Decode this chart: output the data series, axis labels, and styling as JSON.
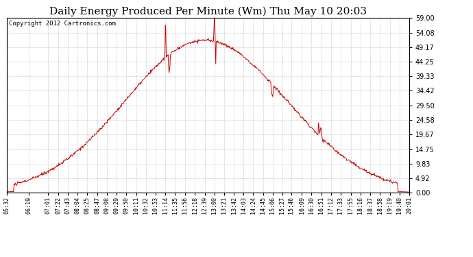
{
  "title": "Daily Energy Produced Per Minute (Wm) Thu May 10 20:03",
  "copyright": "Copyright 2012 Cartronics.com",
  "y_ticks": [
    0.0,
    4.92,
    9.83,
    14.75,
    19.67,
    24.58,
    29.5,
    34.42,
    39.33,
    44.25,
    49.17,
    54.08,
    59.0
  ],
  "y_max": 59.0,
  "y_min": 0.0,
  "line_color": "#cc0000",
  "bg_color": "#ffffff",
  "grid_color": "#bbbbbb",
  "title_fontsize": 11,
  "copyright_fontsize": 6.5,
  "x_tick_labels": [
    "05:32",
    "06:19",
    "07:01",
    "07:22",
    "07:43",
    "08:04",
    "08:25",
    "08:47",
    "09:08",
    "09:29",
    "09:50",
    "10:11",
    "10:32",
    "10:53",
    "11:14",
    "11:35",
    "11:56",
    "12:18",
    "12:39",
    "13:00",
    "13:21",
    "13:42",
    "14:03",
    "14:24",
    "14:45",
    "15:06",
    "15:27",
    "15:46",
    "16:09",
    "16:30",
    "16:51",
    "17:12",
    "17:33",
    "17:55",
    "18:16",
    "18:37",
    "18:58",
    "19:19",
    "19:40",
    "20:01"
  ],
  "spike1_time": "11:14",
  "spike2_time": "13:00",
  "dip1_time": "11:22",
  "dip2_time": "15:06",
  "dip3_time": "16:51",
  "peak_time": "12:39",
  "peak_val": 51.5,
  "t_start": "05:32",
  "t_end": "20:01"
}
